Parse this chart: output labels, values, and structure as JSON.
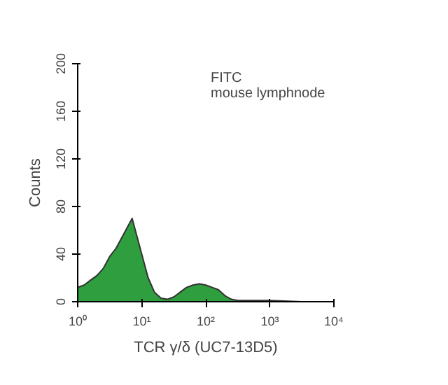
{
  "chart_data": {
    "type": "area",
    "xlabel": "TCR γ/δ (UC7-13D5)",
    "ylabel": "Counts",
    "annotations": [
      "FITC",
      "mouse lymphnode"
    ],
    "log": "x",
    "grid": false,
    "x": [
      1,
      1.26,
      1.58,
      2.0,
      2.51,
      3.16,
      3.98,
      5.01,
      5.62,
      6.31,
      7.08,
      7.94,
      10,
      12.6,
      15.8,
      20,
      25.1,
      31.6,
      39.8,
      50.1,
      63.1,
      79.4,
      100,
      126,
      158,
      200,
      251,
      316,
      501,
      1000,
      3162,
      10000
    ],
    "series": [
      {
        "color": "#2e9e3e",
        "values": [
          12,
          14,
          18,
          22,
          28,
          38,
          45,
          55,
          60,
          65,
          70,
          60,
          40,
          20,
          8,
          3,
          2,
          4,
          8,
          12,
          14,
          15,
          14,
          12,
          10,
          5,
          2,
          1,
          1,
          1,
          0,
          0
        ]
      }
    ],
    "xlim": [
      1,
      10000
    ],
    "xticks": [
      {
        "value": 1,
        "label": "10⁰"
      },
      {
        "value": 10,
        "label": "10¹"
      },
      {
        "value": 100,
        "label": "10²"
      },
      {
        "value": 1000,
        "label": "10³"
      },
      {
        "value": 10000,
        "label": "10⁴"
      }
    ],
    "ylim": [
      0,
      200
    ],
    "yticks": [
      0,
      40,
      80,
      120,
      160,
      200
    ]
  }
}
